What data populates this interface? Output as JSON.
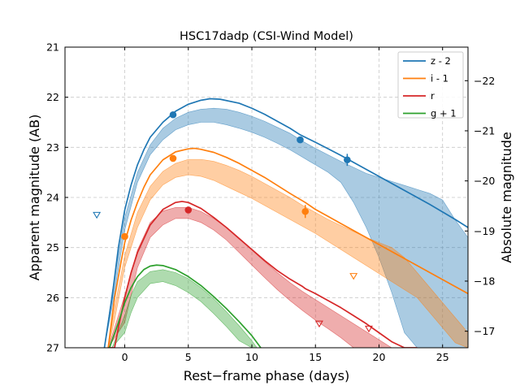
{
  "chart_data": {
    "type": "line",
    "title": "HSC17dadp (CSI-Wind Model)",
    "xlabel": "Rest−frame phase (days)",
    "ylabel": "Apparent magnitude (AB)",
    "ylabel_right": "Absolute magnitude",
    "xlim": [
      -4.7,
      27.0
    ],
    "ylim": [
      27.0,
      21.0
    ],
    "y2lim": [
      -16.67,
      -22.67
    ],
    "grid": true,
    "legend_position": "top-right",
    "x_ticks": [
      0,
      5,
      10,
      15,
      20,
      25
    ],
    "y_ticks": [
      21,
      22,
      23,
      24,
      25,
      26,
      27
    ],
    "y2_ticks": [
      -17,
      -18,
      -19,
      -20,
      -21,
      -22
    ],
    "x_tick_labels": [
      "0",
      "5",
      "10",
      "15",
      "20",
      "25"
    ],
    "y_tick_labels": [
      "21",
      "22",
      "23",
      "24",
      "25",
      "26",
      "27"
    ],
    "y2_tick_labels": [
      "−17",
      "−18",
      "−19",
      "−20",
      "−21",
      "−22"
    ],
    "series": [
      {
        "name": "z - 2",
        "color": "#1f77b4",
        "model_x": [
          -1.6,
          -1.0,
          -0.5,
          0,
          0.5,
          1,
          1.5,
          2,
          3,
          4,
          5,
          6,
          6.7,
          7.5,
          9,
          10,
          11,
          12,
          13,
          13.8,
          15,
          16,
          17,
          18,
          19,
          20,
          21,
          22,
          23,
          24,
          25,
          26,
          27
        ],
        "model_y": [
          27.0,
          26.0,
          25.0,
          24.25,
          23.75,
          23.35,
          23.05,
          22.8,
          22.5,
          22.28,
          22.14,
          22.06,
          22.03,
          22.04,
          22.12,
          22.22,
          22.34,
          22.48,
          22.62,
          22.75,
          22.9,
          23.03,
          23.16,
          23.3,
          23.44,
          23.58,
          23.72,
          23.86,
          24.0,
          24.14,
          24.29,
          24.44,
          24.6
        ],
        "band_x": [
          -1.6,
          -1,
          0,
          1,
          2,
          3,
          4,
          5,
          6,
          7,
          8,
          9,
          10,
          11,
          12,
          13,
          14,
          15,
          16,
          17,
          18,
          19,
          20,
          21,
          22,
          23,
          24,
          25,
          26,
          27
        ],
        "band_upper": [
          27.0,
          25.9,
          24.4,
          23.5,
          22.95,
          22.62,
          22.42,
          22.3,
          22.24,
          22.22,
          22.24,
          22.3,
          22.38,
          22.48,
          22.6,
          22.72,
          22.88,
          23.02,
          23.15,
          23.28,
          23.4,
          23.52,
          23.6,
          23.68,
          23.76,
          23.84,
          23.92,
          24.05,
          24.45,
          24.8
        ],
        "band_lower": [
          27.0,
          26.2,
          24.65,
          23.7,
          23.15,
          22.85,
          22.65,
          22.55,
          22.5,
          22.5,
          22.55,
          22.62,
          22.7,
          22.8,
          22.92,
          23.05,
          23.2,
          23.35,
          23.5,
          23.7,
          24.1,
          24.6,
          25.2,
          25.9,
          26.7,
          27.0,
          27.0,
          27.0,
          27.0,
          27.0
        ],
        "obs_x": [
          3.8,
          13.8,
          17.5
        ],
        "obs_y": [
          22.35,
          22.85,
          23.25
        ],
        "obs_err": [
          0.03,
          0.05,
          0.12
        ],
        "limit_x": [
          -2.2
        ],
        "limit_y": [
          24.35
        ]
      },
      {
        "name": "i - 1",
        "color": "#ff7f0e",
        "model_x": [
          -1.3,
          -0.8,
          -0.3,
          0,
          0.5,
          1,
          1.5,
          2,
          3,
          4,
          5,
          5.5,
          6,
          7,
          8,
          9,
          10,
          11,
          12,
          13,
          14.2,
          15,
          16,
          17,
          18,
          19,
          20,
          21,
          22,
          23,
          24,
          25,
          26,
          27
        ],
        "model_y": [
          27.0,
          26.0,
          25.3,
          24.9,
          24.45,
          24.1,
          23.8,
          23.55,
          23.25,
          23.09,
          23.03,
          23.02,
          23.04,
          23.1,
          23.2,
          23.32,
          23.46,
          23.6,
          23.76,
          23.92,
          24.1,
          24.24,
          24.38,
          24.52,
          24.66,
          24.8,
          24.94,
          25.08,
          25.22,
          25.36,
          25.5,
          25.64,
          25.78,
          25.92
        ],
        "band_x": [
          -1.3,
          -0.8,
          0,
          1,
          2,
          3,
          4,
          5,
          6,
          7,
          8,
          9,
          10,
          11,
          12,
          13,
          14,
          15,
          16,
          17,
          18,
          19,
          20,
          21,
          22,
          23,
          24,
          25,
          26,
          27
        ],
        "band_upper": [
          27.0,
          26.2,
          25.15,
          24.3,
          23.78,
          23.48,
          23.32,
          23.24,
          23.24,
          23.28,
          23.36,
          23.46,
          23.58,
          23.72,
          23.86,
          24.0,
          24.16,
          24.3,
          24.44,
          24.56,
          24.68,
          24.8,
          24.9,
          25.0,
          25.2,
          25.5,
          25.8,
          26.1,
          26.4,
          26.7
        ],
        "band_lower": [
          27.0,
          26.45,
          25.4,
          24.6,
          24.05,
          23.75,
          23.6,
          23.55,
          23.58,
          23.66,
          23.78,
          23.9,
          24.02,
          24.16,
          24.3,
          24.44,
          24.58,
          24.72,
          24.88,
          25.04,
          25.2,
          25.36,
          25.52,
          25.68,
          25.84,
          26.0,
          26.3,
          26.6,
          26.9,
          27.0
        ],
        "obs_x": [
          0.0,
          3.8,
          14.2
        ],
        "obs_y": [
          24.78,
          23.22,
          24.28
        ],
        "obs_err": [
          0.05,
          0.04,
          0.13
        ],
        "limit_x": [
          18.0
        ],
        "limit_y": [
          25.57
        ]
      },
      {
        "name": "r",
        "color": "#d62728",
        "model_x": [
          -1.3,
          -0.8,
          -0.5,
          0,
          0.5,
          1,
          2,
          3,
          4,
          4.5,
          5,
          6,
          7,
          8,
          9,
          10,
          11,
          12,
          13,
          14,
          14.2,
          15,
          16,
          17,
          18,
          19,
          20,
          21,
          22,
          23
        ],
        "model_y": [
          27.0,
          27.0,
          26.6,
          26.0,
          25.5,
          25.1,
          24.55,
          24.24,
          24.1,
          24.08,
          24.1,
          24.22,
          24.4,
          24.6,
          24.82,
          25.04,
          25.26,
          25.46,
          25.63,
          25.78,
          25.82,
          25.92,
          26.06,
          26.2,
          26.36,
          26.52,
          26.7,
          26.88,
          27.0,
          27.0
        ],
        "band_x": [
          -1.3,
          0,
          1,
          2,
          3,
          4,
          5,
          6,
          7,
          8,
          9,
          10,
          11,
          12,
          13,
          14,
          15,
          16,
          17,
          18,
          19,
          20,
          21,
          22
        ],
        "band_upper": [
          27.0,
          25.95,
          25.05,
          24.5,
          24.27,
          24.2,
          24.2,
          24.28,
          24.42,
          24.6,
          24.82,
          25.05,
          25.28,
          25.5,
          25.7,
          25.88,
          26.04,
          26.2,
          26.36,
          26.52,
          26.68,
          26.84,
          27.0,
          27.0
        ],
        "band_lower": [
          27.0,
          26.5,
          25.4,
          24.8,
          24.55,
          24.42,
          24.42,
          24.5,
          24.65,
          24.85,
          25.1,
          25.35,
          25.6,
          25.84,
          26.06,
          26.26,
          26.45,
          26.62,
          26.8,
          27.0,
          27.0,
          27.0,
          27.0,
          27.0
        ],
        "obs_x": [
          5.0
        ],
        "obs_y": [
          24.25
        ],
        "obs_err": [
          0.03
        ],
        "limit_x": [
          15.3,
          19.2
        ],
        "limit_y": [
          26.52,
          26.62
        ]
      },
      {
        "name": "g + 1",
        "color": "#2ca02c",
        "model_x": [
          -1.2,
          -0.5,
          0,
          0.5,
          1,
          1.5,
          2,
          2.5,
          3,
          4,
          5,
          6,
          7,
          8,
          9,
          10,
          10.7
        ],
        "model_y": [
          27.0,
          26.5,
          26.1,
          25.8,
          25.58,
          25.44,
          25.37,
          25.35,
          25.36,
          25.44,
          25.58,
          25.76,
          25.98,
          26.22,
          26.48,
          26.76,
          27.0
        ],
        "band_x": [
          -1.0,
          0,
          0.5,
          1,
          2,
          3,
          4,
          5,
          6,
          7,
          8,
          9,
          10,
          10.4
        ],
        "band_upper": [
          27.0,
          26.35,
          25.95,
          25.68,
          25.48,
          25.44,
          25.5,
          25.62,
          25.8,
          26.02,
          26.28,
          26.56,
          26.86,
          27.0
        ],
        "band_lower": [
          27.0,
          26.7,
          26.3,
          26.0,
          25.72,
          25.68,
          25.76,
          25.9,
          26.08,
          26.32,
          26.58,
          26.86,
          27.0,
          27.0
        ],
        "obs_x": [],
        "obs_y": [],
        "obs_err": [],
        "limit_x": [],
        "limit_y": []
      }
    ]
  }
}
